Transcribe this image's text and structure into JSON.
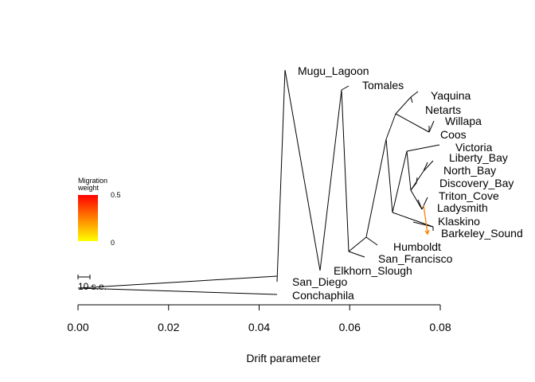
{
  "chart_data": {
    "type": "tree",
    "xlabel": "Drift parameter",
    "xlim": [
      0.0,
      0.08
    ],
    "x_ticks": [
      "0.00",
      "0.02",
      "0.04",
      "0.06",
      "0.08"
    ],
    "x_tick_values": [
      0.0,
      0.02,
      0.04,
      0.06,
      0.08
    ],
    "leaves": [
      {
        "name": "Mugu_Lagoon",
        "drift": 0.0458
      },
      {
        "name": "Tomales",
        "drift": 0.0581
      },
      {
        "name": "Yaquina",
        "drift": 0.0747
      },
      {
        "name": "Netarts",
        "drift": 0.0731
      },
      {
        "name": "Willapa",
        "drift": 0.0779
      },
      {
        "name": "Coos",
        "drift": 0.0777
      },
      {
        "name": "Victoria",
        "drift": 0.0799
      },
      {
        "name": "Liberty_Bay",
        "drift": 0.0792
      },
      {
        "name": "North_Bay",
        "drift": 0.0788
      },
      {
        "name": "Discovery_Bay",
        "drift": 0.0779
      },
      {
        "name": "Triton_Cove",
        "drift": 0.0779
      },
      {
        "name": "Ladysmith",
        "drift": 0.0765
      },
      {
        "name": "Klaskino",
        "drift": 0.0781
      },
      {
        "name": "Barkeley_Sound",
        "drift": 0.0776
      },
      {
        "name": "Humboldt",
        "drift": 0.0675
      },
      {
        "name": "San_Francisco",
        "drift": 0.064
      },
      {
        "name": "Elkhorn_Slough",
        "drift": 0.0566
      },
      {
        "name": "San_Diego",
        "drift": 0.0443
      },
      {
        "name": "Conchaphila",
        "drift": 0.0443
      }
    ],
    "migration_edges": [
      {
        "from": "Ladysmith",
        "to": "Barkeley_Sound",
        "weight": 0.3,
        "color": "#ff7f00"
      }
    ],
    "legend": {
      "title_line1": "Migration",
      "title_line2": "weight",
      "max_label": "0.5",
      "min_label": "0",
      "color_top": "#ff0000",
      "color_bottom": "#ffff00"
    },
    "scale_bar_label": "10 s.e."
  }
}
